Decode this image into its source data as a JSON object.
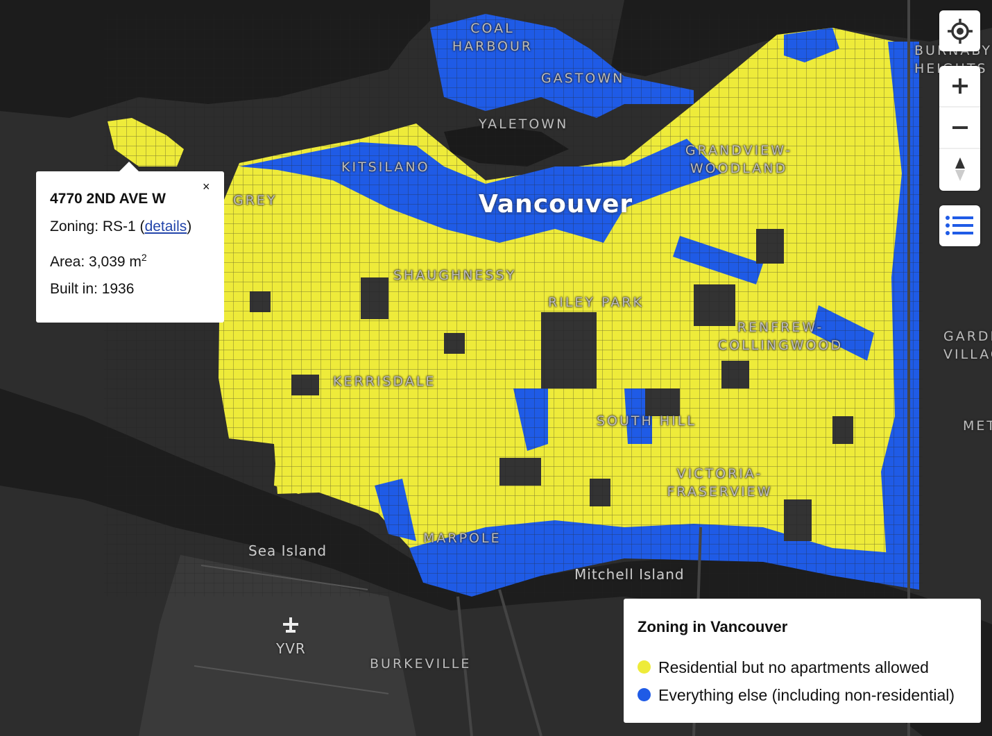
{
  "map": {
    "labels": [
      "COAL HARBOUR",
      "GASTOWN",
      "YALETOWN",
      "BURNABY HEIGHTS",
      "KITSILANO",
      "GRANDVIEW-WOODLAND",
      "GREY",
      "Vancouver",
      "SHAUGHNESSY",
      "RILEY PARK",
      "RENFREW-COLLINGWOOD",
      "KERRISDALE",
      "SOUTH HILL",
      "VICTORIA-FRASERVIEW",
      "MARPOLE",
      "Sea Island",
      "Mitchell Island",
      "YVR",
      "BURKEVILLE",
      "GARDEN VILLAGE",
      "METROTOWN"
    ]
  },
  "popup": {
    "title": "4770 2ND AVE W",
    "zoning_prefix": "Zoning: RS-1 (",
    "zoning_link": "details",
    "zoning_suffix": ")",
    "area": "Area: 3,039 m",
    "area_sup": "2",
    "built": "Built in: 1936",
    "close": "×"
  },
  "legend": {
    "title": "Zoning in Vancouver",
    "items": [
      {
        "label": "Residential but no apartments allowed",
        "color": "#eeeb3a"
      },
      {
        "label": "Everything else (including non-residential)",
        "color": "#1f5be6"
      }
    ]
  }
}
